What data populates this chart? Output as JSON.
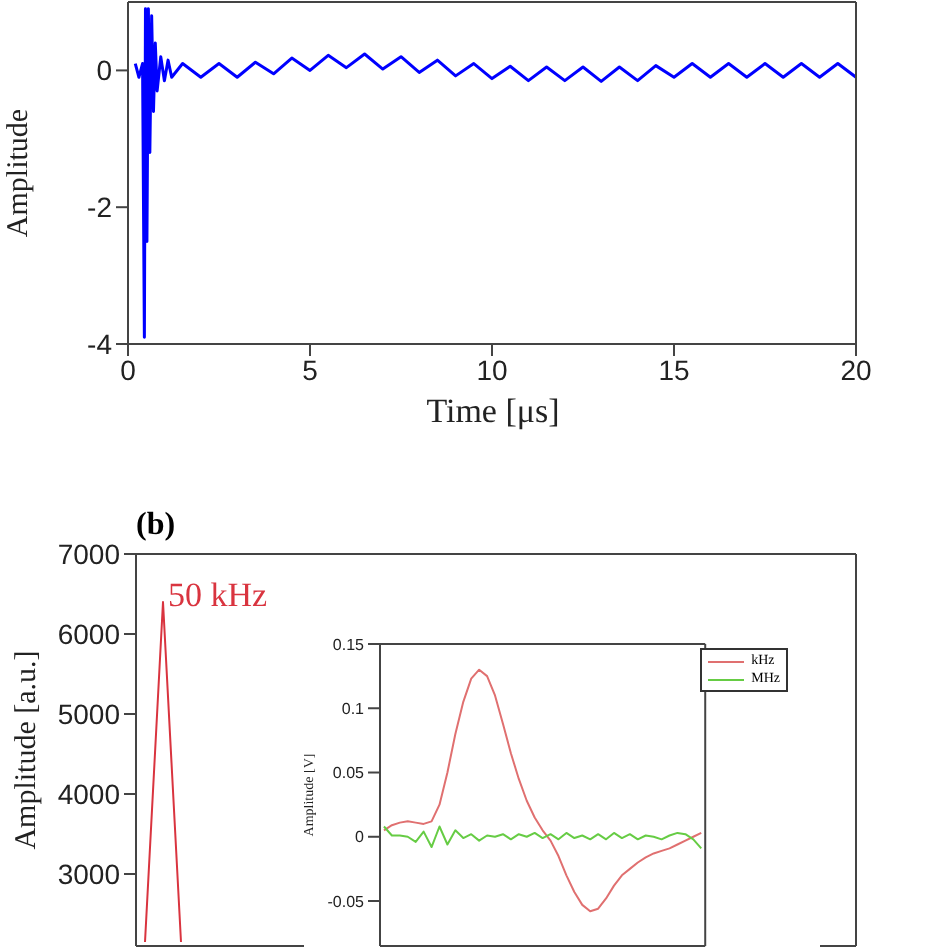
{
  "chart_data": [
    {
      "type": "line",
      "xlabel": "Time [μs]",
      "ylabel": "Amplitude",
      "x": [
        0.2,
        0.3,
        0.4,
        0.45,
        0.48,
        0.52,
        0.56,
        0.6,
        0.65,
        0.7,
        0.75,
        0.8,
        0.9,
        1.0,
        1.1,
        1.2,
        1.5,
        2,
        2.5,
        3,
        3.5,
        4,
        4.5,
        5,
        5.5,
        6,
        6.5,
        7,
        7.5,
        8,
        8.5,
        9,
        9.5,
        10,
        10.5,
        11,
        11.5,
        12,
        12.5,
        13,
        13.5,
        14,
        14.5,
        15,
        15.5,
        16,
        16.5,
        17,
        17.5,
        18,
        18.5,
        19,
        19.5,
        20
      ],
      "series": [
        {
          "color": "#0000ff",
          "values": [
            0.1,
            -0.1,
            0.1,
            -3.9,
            0.9,
            -2.5,
            0.9,
            -1.2,
            0.8,
            -0.6,
            0.4,
            -0.3,
            0.2,
            -0.15,
            0.15,
            -0.1,
            0.1,
            -0.1,
            0.1,
            -0.1,
            0.12,
            -0.05,
            0.18,
            0,
            0.22,
            0.04,
            0.24,
            0.02,
            0.2,
            -0.03,
            0.15,
            -0.08,
            0.1,
            -0.12,
            0.06,
            -0.15,
            0.05,
            -0.15,
            0.05,
            -0.16,
            0.05,
            -0.15,
            0.07,
            -0.1,
            0.1,
            -0.1,
            0.1,
            -0.1,
            0.1,
            -0.1,
            0.1,
            -0.1,
            0.1,
            -0.1
          ]
        }
      ],
      "xlim": [
        0,
        20
      ],
      "xticks": [
        0,
        5,
        10,
        15,
        20
      ],
      "ylim": [
        -4,
        1
      ],
      "yticks": [
        -4,
        -2,
        0
      ],
      "grid": false,
      "legend": false,
      "marker": "none",
      "line_style": "solid"
    },
    {
      "type": "line",
      "title": "(b)",
      "ylabel": "Amplitude [a.u.]",
      "annotations": [
        "50 kHz"
      ],
      "categories": [
        null,
        null,
        null,
        null,
        null,
        null,
        null,
        null,
        null,
        null,
        null,
        null,
        null,
        null,
        null,
        null,
        null,
        null,
        null,
        null,
        null,
        null,
        null,
        null,
        null,
        null,
        null,
        null,
        null,
        null,
        null,
        null,
        null,
        null,
        null,
        null,
        null,
        null,
        null,
        null
      ],
      "series": [
        {
          "color": "#d9343f",
          "values": [
            2150,
            6400,
            2150,
            null,
            null,
            null,
            null,
            null,
            null,
            null,
            null,
            null,
            null,
            null,
            null,
            null,
            null,
            null,
            null,
            null,
            null,
            null,
            null,
            null,
            null,
            null,
            null,
            null,
            null,
            null,
            null,
            null,
            null,
            null,
            null,
            null,
            null,
            null,
            null,
            null
          ]
        }
      ],
      "ylim": [
        2100,
        7000
      ],
      "yticks": [
        3000,
        4000,
        5000,
        6000,
        7000
      ],
      "tick_labels": "y",
      "grid": false,
      "legend": false,
      "marker": "none",
      "line_style": "solid"
    },
    {
      "type": "line",
      "ylabel": "Amplitude [V]",
      "categories": [
        null,
        null,
        null,
        null,
        null,
        null,
        null,
        null,
        null,
        null,
        null,
        null,
        null,
        null,
        null,
        null,
        null,
        null,
        null,
        null,
        null,
        null,
        null,
        null,
        null,
        null,
        null,
        null,
        null,
        null,
        null,
        null,
        null,
        null,
        null,
        null,
        null,
        null,
        null,
        null,
        null
      ],
      "series": [
        {
          "name": "kHz",
          "color": "#e07070",
          "values": [
            0.005,
            0.009,
            0.011,
            0.012,
            0.011,
            0.01,
            0.012,
            0.025,
            0.05,
            0.08,
            0.105,
            0.123,
            0.13,
            0.125,
            0.11,
            0.088,
            0.065,
            0.045,
            0.028,
            0.015,
            0.005,
            -0.003,
            -0.015,
            -0.03,
            -0.043,
            -0.053,
            -0.058,
            -0.056,
            -0.048,
            -0.038,
            -0.03,
            -0.025,
            -0.02,
            -0.016,
            -0.013,
            -0.011,
            -0.009,
            -0.006,
            -0.003,
            0,
            0.003
          ]
        },
        {
          "name": "MHz",
          "color": "#66cc44",
          "values": [
            0.008,
            0.001,
            0.001,
            0,
            -0.004,
            0.004,
            -0.008,
            0.008,
            -0.006,
            0.005,
            -0.001,
            0.002,
            -0.003,
            0.001,
            0,
            0.002,
            -0.002,
            0.002,
            0,
            0.003,
            -0.001,
            0.002,
            -0.002,
            0.003,
            -0.001,
            0.001,
            -0.002,
            0.002,
            -0.002,
            0.003,
            -0.001,
            0.002,
            -0.002,
            0.001,
            0,
            -0.002,
            0.001,
            0.003,
            0.002,
            -0.002,
            -0.009
          ]
        }
      ],
      "ylim": [
        -0.085,
        0.15
      ],
      "yticks": [
        -0.05,
        0,
        0.05,
        0.1,
        0.15
      ],
      "tick_labels": "y",
      "grid": false,
      "legend": "top right",
      "marker": "none",
      "line_style": "solid"
    }
  ]
}
